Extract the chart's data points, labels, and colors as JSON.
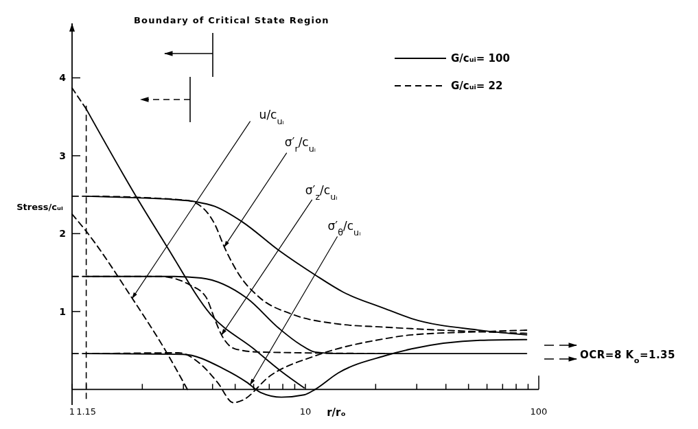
{
  "chart_data": {
    "type": "line",
    "xlabel": "r/rₒ",
    "ylabel": "Stress/cᵤᵢ",
    "log": "x",
    "xlim": [
      1,
      100
    ],
    "ylim": [
      -0.2,
      4.7
    ],
    "xticks": [
      1,
      {
        "value": 1.15,
        "label": "1.15"
      },
      {
        "value": 2,
        "label": null
      },
      {
        "value": 3,
        "label": null
      },
      {
        "value": 4,
        "label": null
      },
      {
        "value": 5,
        "label": null
      },
      {
        "value": 6,
        "label": null
      },
      {
        "value": 7,
        "label": null
      },
      {
        "value": 8,
        "label": null
      },
      {
        "value": 9,
        "label": null
      },
      10,
      {
        "value": 20,
        "label": null
      },
      {
        "value": 30,
        "label": null
      },
      {
        "value": 40,
        "label": null
      },
      {
        "value": 50,
        "label": null
      },
      {
        "value": 60,
        "label": null
      },
      {
        "value": 70,
        "label": null
      },
      {
        "value": 80,
        "label": null
      },
      {
        "value": 90,
        "label": null
      },
      100
    ],
    "yticks": [
      1,
      2,
      3,
      4
    ],
    "legend": "top right",
    "series": [
      {
        "name": "G/cᵤᵢ= 100",
        "color": "#000000",
        "line_style": "solid",
        "x": [
          1.15,
          1.9,
          2.67,
          3.38,
          4.09,
          5.37,
          7.73,
          11,
          14.5,
          21.8,
          28.5,
          56,
          88.7
        ],
        "values": [
          2.48,
          2.46,
          2.44,
          2.41,
          2.35,
          2.15,
          1.78,
          1.47,
          1.25,
          1.04,
          0.91,
          0.76,
          0.7
        ]
      },
      {
        "color": "#000000",
        "line_style": "solid",
        "x": [
          1.15,
          2.67,
          3.57,
          5.62,
          7.73,
          9.46,
          11,
          13.8,
          88.7
        ],
        "values": [
          1.45,
          1.45,
          1.43,
          1.17,
          0.78,
          0.58,
          0.48,
          0.46,
          0.46
        ]
      },
      {
        "color": "#000000",
        "line_style": "solid",
        "x": [
          1.15,
          2.99,
          4.49,
          5.62,
          6.43,
          7.89,
          9.87,
          11,
          13.8,
          21.8,
          28.5,
          56,
          88.7
        ],
        "values": [
          0.46,
          0.45,
          0.26,
          0.09,
          -0.04,
          -0.1,
          -0.07,
          0,
          0.21,
          0.43,
          0.52,
          0.63,
          0.64
        ]
      },
      {
        "color": "#000000",
        "line_style": "solid",
        "x": [
          1.15,
          1.94,
          2.53,
          3.93,
          6.01,
          7.89,
          9.87
        ],
        "values": [
          3.6,
          2.41,
          1.85,
          0.96,
          0.52,
          0.23,
          0.02
        ]
      },
      {
        "name": "G/cᵤᵢ= 22",
        "color": "#000000",
        "line_style": "dashed",
        "x": [
          1,
          1.15,
          3.06,
          3.57,
          4.09,
          4.49,
          5.26,
          6.3,
          8.87,
          13.8,
          21.8,
          28.5,
          56,
          88.7
        ],
        "values": [
          2.48,
          2.48,
          2.43,
          2.35,
          2.12,
          1.83,
          1.45,
          1.19,
          0.96,
          0.84,
          0.8,
          0.78,
          0.74,
          0.72
        ]
      },
      {
        "color": "#000000",
        "line_style": "dashed",
        "x": [
          1,
          1.15,
          2.38,
          3.2,
          3.74,
          4.09,
          4.37,
          5,
          6.3,
          21.8
        ],
        "values": [
          1.45,
          1.45,
          1.45,
          1.34,
          1.19,
          0.9,
          0.7,
          0.52,
          0.48,
          0.46
        ]
      },
      {
        "color": "#000000",
        "line_style": "dashed",
        "x": [
          1,
          1.15,
          2.86,
          3.57,
          4.2,
          4.91,
          5.37,
          7.03,
          11,
          21.8,
          28.5,
          56,
          88.7
        ],
        "values": [
          0.46,
          0.46,
          0.47,
          0.32,
          0.09,
          -0.17,
          -0.14,
          0.17,
          0.43,
          0.65,
          0.7,
          0.74,
          0.76
        ]
      },
      {
        "color": "#000000",
        "line_style": "dashed",
        "x": [
          1,
          1.15,
          1.81,
          2.49,
          3.12
        ],
        "values": [
          2.25,
          2.03,
          1.17,
          0.52,
          0
        ]
      },
      {
        "color": "#000000",
        "line_style": "dashed",
        "x": [
          1,
          1.15
        ],
        "values": [
          3.87,
          3.6
        ]
      }
    ],
    "ref_lines": [
      {
        "axis": "x",
        "value": 1.15,
        "line_style": "dashed"
      }
    ],
    "annotations": [
      "Boundary of Critical State Region",
      {
        "text": "u/c$_{uᵢ}$",
        "x": 1.81,
        "y": 1.17
      },
      {
        "text": "σ′$_{r}$/c$_{uᵢ}$",
        "x": 4.49,
        "y": 1.83
      },
      {
        "text": "σ′$_{z}$/c$_{uᵢ}$",
        "x": 4.37,
        "y": 0.7
      },
      {
        "text": "σ′$_{θ}$/c$_{uᵢ}$",
        "x": 5.8,
        "y": 0.06
      },
      "OCR=8  K$_{o}$=1.35"
    ]
  }
}
